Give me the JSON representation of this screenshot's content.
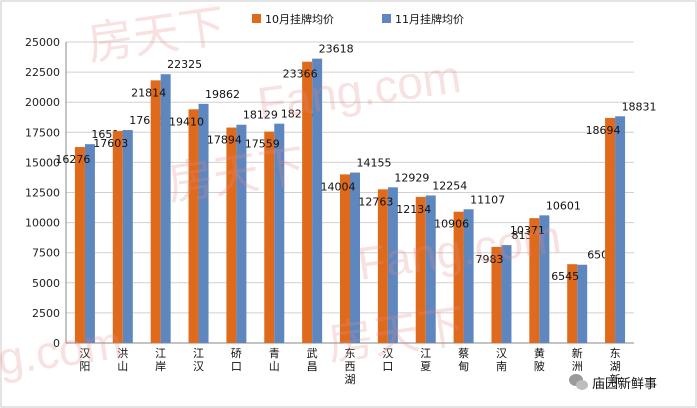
{
  "chart_data": {
    "type": "bar",
    "categories": [
      "汉阳",
      "洪山",
      "江岸",
      "江汉",
      "硚口",
      "青山",
      "武昌",
      "东西湖",
      "汉口",
      "江夏",
      "蔡甸",
      "汉南",
      "黄陂",
      "新洲",
      "东湖新"
    ],
    "series": [
      {
        "name": "10月挂牌均价",
        "color": "#e06a1b",
        "values": [
          16276,
          17603,
          21814,
          19410,
          17894,
          17559,
          23366,
          14004,
          12763,
          12134,
          10906,
          7983,
          10371,
          6545,
          18694
        ]
      },
      {
        "name": "11月挂牌均价",
        "color": "#5e87bf",
        "values": [
          16514,
          17686,
          22325,
          19862,
          18129,
          18217,
          23618,
          14155,
          12929,
          12254,
          11107,
          8132,
          10601,
          6500,
          18831
        ]
      }
    ],
    "ylim": [
      0,
      25000
    ],
    "yticks": [
      0,
      2500,
      5000,
      7500,
      10000,
      12500,
      15000,
      17500,
      20000,
      22500,
      25000
    ],
    "grid": true,
    "legend_position": "top"
  },
  "watermarks": [
    "房天下",
    "Fang.com",
    "房天下",
    "Fang.com",
    "房天下",
    "g.com"
  ],
  "brand": {
    "text": "庙园新鲜事",
    "icon": "wechat-icon"
  }
}
